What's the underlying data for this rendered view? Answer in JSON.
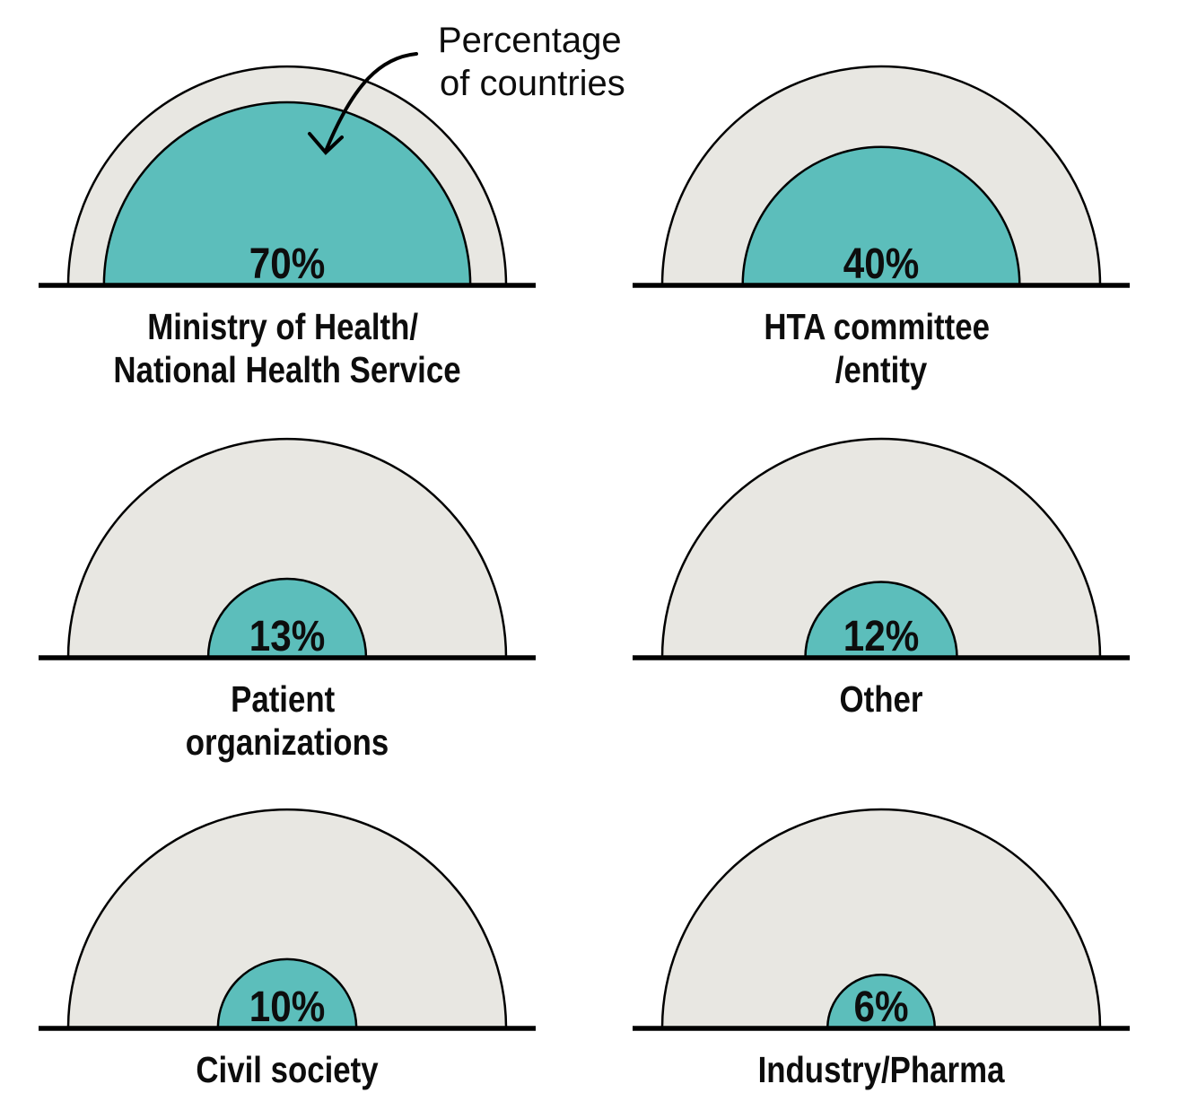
{
  "annotation": {
    "line1": "Percentage",
    "line2": "of countries"
  },
  "colors": {
    "fill": "#5CBEBB",
    "track": "#E8E7E2",
    "outline": "#000000"
  },
  "chart_data": {
    "type": "semicircle-gauge",
    "title": "",
    "annotation": "Percentage of countries",
    "unit": "%",
    "ylim": [
      0,
      100
    ],
    "categories": [
      "Ministry of Health/National Health Service",
      "HTA committee/entity",
      "Patient organizations",
      "Other",
      "Civil society",
      "Industry/Pharma"
    ],
    "values": [
      70,
      40,
      13,
      12,
      10,
      6
    ],
    "series": [
      {
        "label_lines": [
          "Ministry of Health/",
          "National Health Service"
        ],
        "value": 70,
        "display": "70%"
      },
      {
        "label_lines": [
          "HTA committee",
          "/entity"
        ],
        "value": 40,
        "display": "40%"
      },
      {
        "label_lines": [
          "Patient",
          "organizations"
        ],
        "value": 13,
        "display": "13%"
      },
      {
        "label_lines": [
          "Other",
          ""
        ],
        "value": 12,
        "display": "12%"
      },
      {
        "label_lines": [
          "Civil society",
          ""
        ],
        "value": 10,
        "display": "10%"
      },
      {
        "label_lines": [
          "Industry/Pharma",
          ""
        ],
        "value": 6,
        "display": "6%"
      }
    ],
    "layout_hints": {
      "grid": "2 columns x 3 rows",
      "inner_radius_rule": "outer_radius * sqrt(value/100)",
      "legend": "none",
      "grid_lines": "off"
    }
  }
}
